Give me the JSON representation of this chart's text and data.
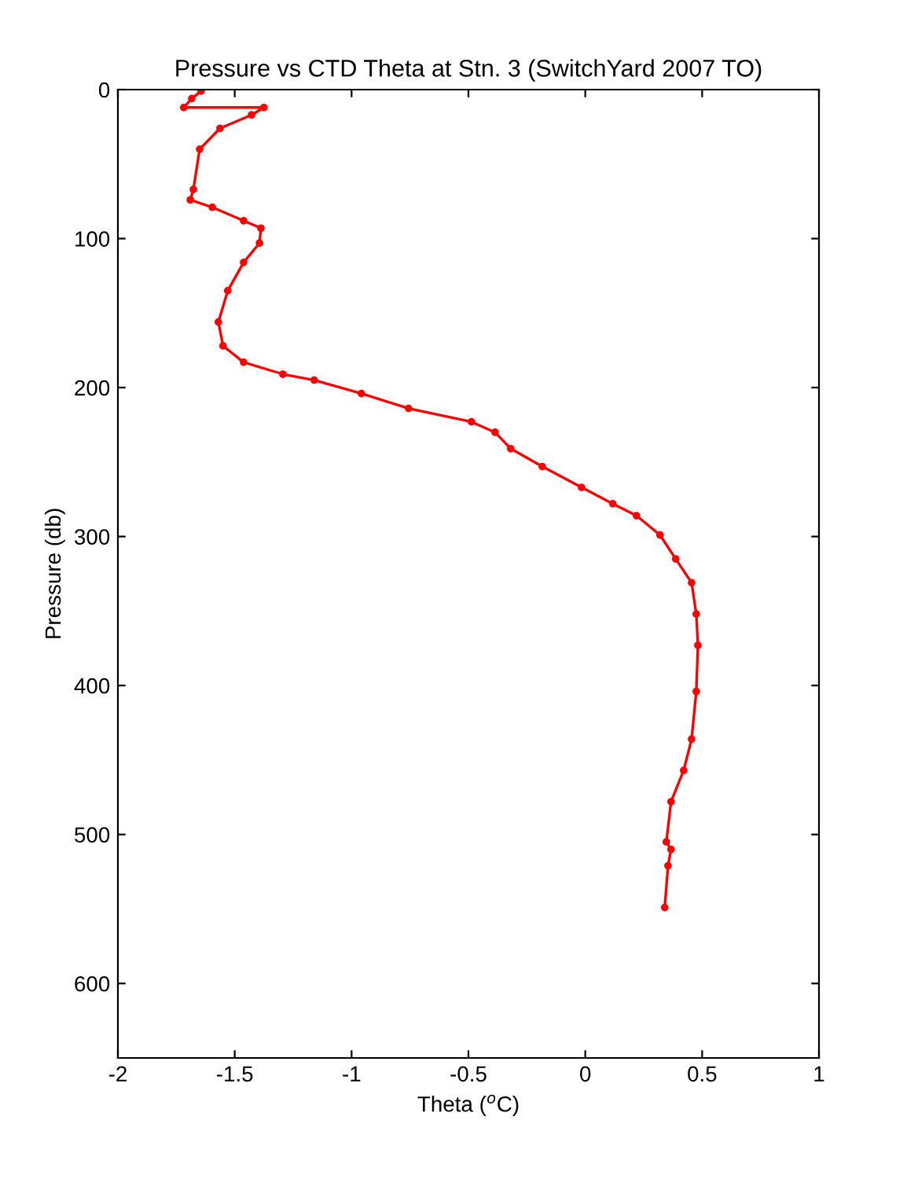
{
  "chart_data": {
    "type": "line",
    "title": "Pressure vs CTD Theta at Stn. 3 (SwitchYard 2007 TO)",
    "xlabel": "Theta ($^{o}$C)",
    "ylabel": "Pressure (db)",
    "series": [
      {
        "color": "#ff0000",
        "x": [
          -1.644,
          -1.684,
          -1.718,
          -1.375,
          -1.428,
          -1.563,
          -1.65,
          -1.677,
          -1.69,
          -1.596,
          -1.462,
          -1.388,
          -1.394,
          -1.462,
          -1.53,
          -1.57,
          -1.55,
          -1.462,
          -1.294,
          -1.16,
          -0.958,
          -0.756,
          -0.487,
          -0.386,
          -0.319,
          -0.184,
          -0.016,
          0.118,
          0.219,
          0.32,
          0.387,
          0.455,
          0.475,
          0.482,
          0.475,
          0.455,
          0.421,
          0.367,
          0.347,
          0.367,
          0.354,
          0.34
        ],
        "values": [
          1,
          6,
          12,
          12,
          17,
          26,
          40,
          67,
          74,
          79,
          88,
          93,
          103,
          116,
          135,
          156,
          172,
          183,
          191,
          195,
          204,
          214,
          223,
          230,
          241,
          253,
          267,
          278,
          286,
          299,
          315,
          331,
          352,
          373,
          404,
          436,
          457,
          478,
          505,
          510,
          521,
          549
        ]
      }
    ],
    "xlim": [
      -2,
      1
    ],
    "xticks": [
      -2,
      -1.5,
      -1,
      -0.5,
      0,
      0.5,
      1
    ],
    "ylim": [
      650,
      0
    ],
    "yticks": [
      0,
      100,
      200,
      300,
      400,
      500,
      600
    ],
    "grid": false,
    "legend": false,
    "marker": "circle",
    "line_style": "solid"
  }
}
